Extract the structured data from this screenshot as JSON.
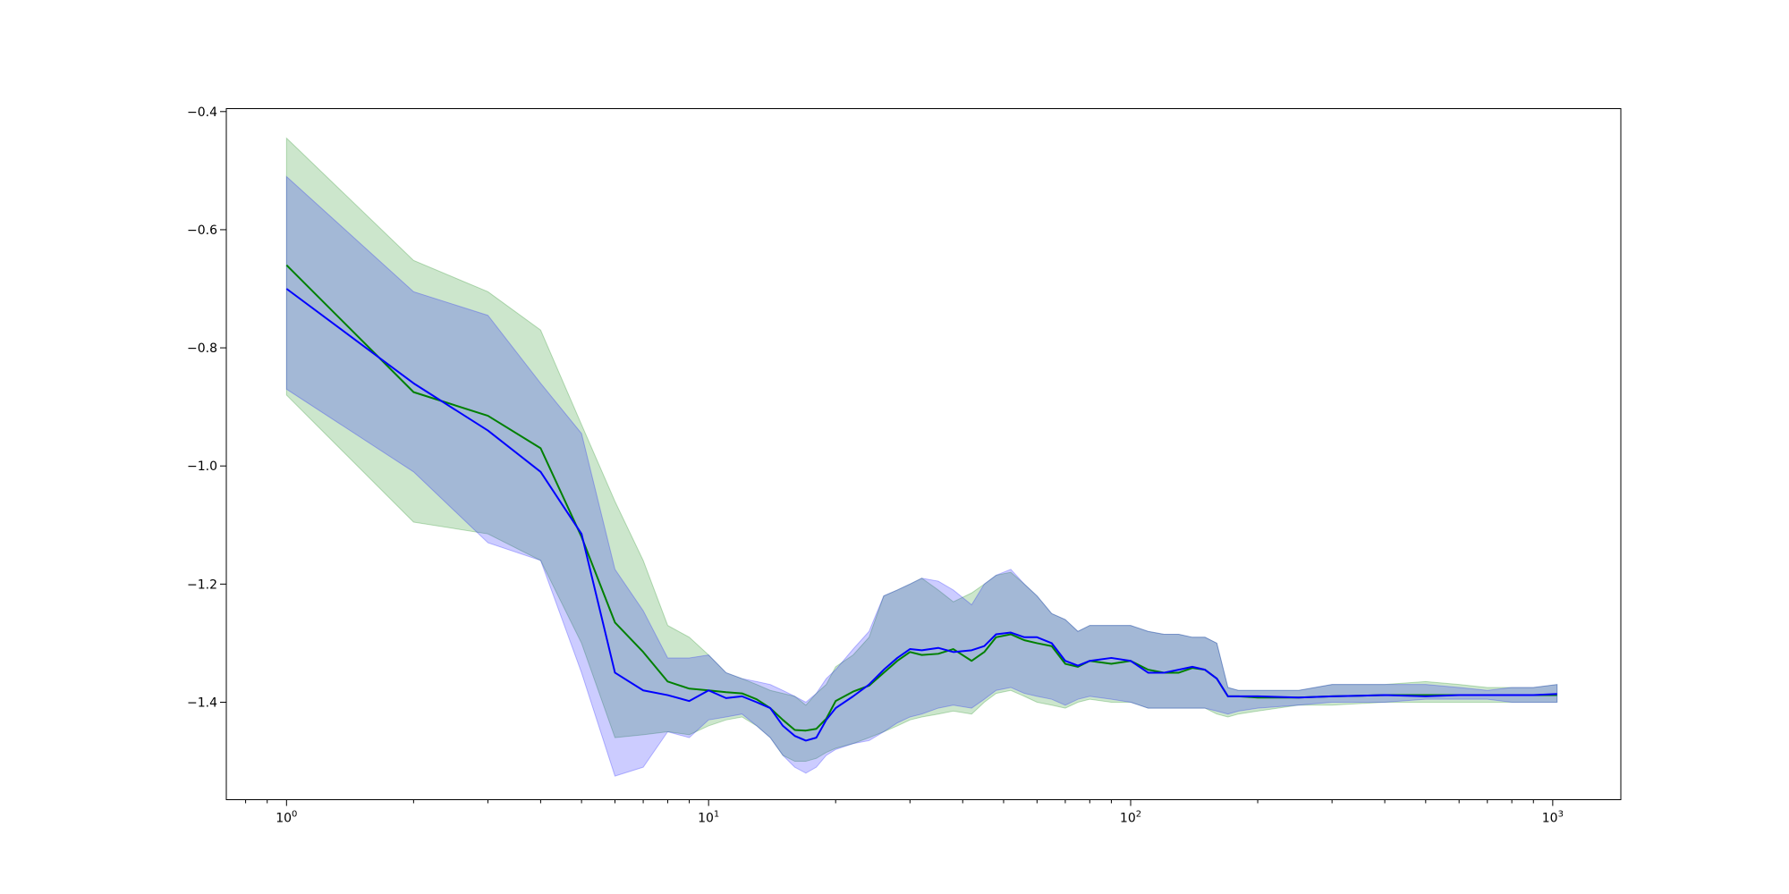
{
  "chart_data": {
    "type": "line",
    "title": "",
    "xlabel": "",
    "ylabel": "",
    "xscale": "log",
    "xlim": [
      0.72,
      1450
    ],
    "ylim": [
      -1.565,
      -0.395
    ],
    "grid": false,
    "legend": "none",
    "x_ticks": [
      {
        "value": 1,
        "base": "10",
        "exp": "0"
      },
      {
        "value": 10,
        "base": "10",
        "exp": "1"
      },
      {
        "value": 100,
        "base": "10",
        "exp": "2"
      },
      {
        "value": 1000,
        "base": "10",
        "exp": "3"
      }
    ],
    "y_ticks": [
      {
        "value": -0.4,
        "label": "−0.4"
      },
      {
        "value": -0.6,
        "label": "−0.6"
      },
      {
        "value": -0.8,
        "label": "−0.8"
      },
      {
        "value": -1.0,
        "label": "−1.0"
      },
      {
        "value": -1.2,
        "label": "−1.2"
      },
      {
        "value": -1.4,
        "label": "−1.4"
      }
    ],
    "series": [
      {
        "color": "#008000",
        "band_color": "#008000",
        "band_opacity": 0.2,
        "x": [
          1,
          2,
          3,
          4,
          5,
          6,
          7,
          8,
          9,
          10,
          11,
          12,
          13,
          14,
          15,
          16,
          17,
          18,
          19,
          20,
          22,
          24,
          26,
          28,
          30,
          32,
          35,
          38,
          42,
          45,
          48,
          52,
          56,
          60,
          65,
          70,
          75,
          80,
          90,
          100,
          110,
          120,
          130,
          140,
          150,
          160,
          170,
          180,
          200,
          250,
          300,
          400,
          500,
          600,
          700,
          800,
          900,
          1024
        ],
        "y": [
          -0.66,
          -0.875,
          -0.915,
          -0.97,
          -1.12,
          -1.265,
          -1.315,
          -1.365,
          -1.377,
          -1.38,
          -1.383,
          -1.385,
          -1.395,
          -1.41,
          -1.43,
          -1.447,
          -1.448,
          -1.445,
          -1.428,
          -1.398,
          -1.382,
          -1.372,
          -1.35,
          -1.33,
          -1.315,
          -1.32,
          -1.318,
          -1.31,
          -1.33,
          -1.315,
          -1.29,
          -1.285,
          -1.295,
          -1.3,
          -1.305,
          -1.335,
          -1.34,
          -1.33,
          -1.335,
          -1.33,
          -1.345,
          -1.35,
          -1.35,
          -1.342,
          -1.345,
          -1.36,
          -1.39,
          -1.39,
          -1.392,
          -1.392,
          -1.39,
          -1.388,
          -1.388,
          -1.388,
          -1.388,
          -1.388,
          -1.388,
          -1.388
        ],
        "lower": [
          -0.88,
          -1.095,
          -1.115,
          -1.16,
          -1.3,
          -1.46,
          -1.455,
          -1.45,
          -1.455,
          -1.44,
          -1.43,
          -1.425,
          -1.44,
          -1.46,
          -1.49,
          -1.5,
          -1.5,
          -1.495,
          -1.485,
          -1.478,
          -1.47,
          -1.46,
          -1.45,
          -1.44,
          -1.43,
          -1.425,
          -1.42,
          -1.415,
          -1.42,
          -1.4,
          -1.385,
          -1.38,
          -1.39,
          -1.4,
          -1.405,
          -1.41,
          -1.4,
          -1.395,
          -1.4,
          -1.4,
          -1.41,
          -1.41,
          -1.41,
          -1.41,
          -1.41,
          -1.42,
          -1.425,
          -1.42,
          -1.415,
          -1.405,
          -1.405,
          -1.4,
          -1.4,
          -1.4,
          -1.4,
          -1.4,
          -1.4,
          -1.4
        ],
        "upper": [
          -0.445,
          -0.652,
          -0.705,
          -0.77,
          -0.93,
          -1.06,
          -1.16,
          -1.27,
          -1.29,
          -1.32,
          -1.35,
          -1.36,
          -1.37,
          -1.38,
          -1.385,
          -1.39,
          -1.405,
          -1.385,
          -1.37,
          -1.34,
          -1.32,
          -1.29,
          -1.22,
          -1.21,
          -1.2,
          -1.19,
          -1.21,
          -1.23,
          -1.215,
          -1.2,
          -1.185,
          -1.18,
          -1.2,
          -1.22,
          -1.25,
          -1.26,
          -1.28,
          -1.27,
          -1.27,
          -1.27,
          -1.28,
          -1.285,
          -1.285,
          -1.29,
          -1.29,
          -1.3,
          -1.375,
          -1.38,
          -1.38,
          -1.38,
          -1.37,
          -1.37,
          -1.365,
          -1.37,
          -1.375,
          -1.375,
          -1.375,
          -1.37
        ]
      },
      {
        "color": "#0000ff",
        "band_color": "#0000ff",
        "band_opacity": 0.2,
        "x": [
          1,
          2,
          3,
          4,
          5,
          6,
          7,
          8,
          9,
          10,
          11,
          12,
          13,
          14,
          15,
          16,
          17,
          18,
          19,
          20,
          22,
          24,
          26,
          28,
          30,
          32,
          35,
          38,
          42,
          45,
          48,
          52,
          56,
          60,
          65,
          70,
          75,
          80,
          90,
          100,
          110,
          120,
          130,
          140,
          150,
          160,
          170,
          180,
          200,
          250,
          300,
          400,
          500,
          600,
          700,
          800,
          900,
          1024
        ],
        "y": [
          -0.7,
          -0.86,
          -0.94,
          -1.01,
          -1.115,
          -1.35,
          -1.38,
          -1.388,
          -1.398,
          -1.38,
          -1.393,
          -1.39,
          -1.4,
          -1.41,
          -1.44,
          -1.457,
          -1.465,
          -1.46,
          -1.43,
          -1.41,
          -1.39,
          -1.37,
          -1.345,
          -1.325,
          -1.31,
          -1.312,
          -1.308,
          -1.315,
          -1.312,
          -1.305,
          -1.285,
          -1.282,
          -1.29,
          -1.29,
          -1.3,
          -1.33,
          -1.338,
          -1.33,
          -1.325,
          -1.33,
          -1.35,
          -1.35,
          -1.345,
          -1.34,
          -1.345,
          -1.36,
          -1.39,
          -1.39,
          -1.39,
          -1.392,
          -1.39,
          -1.388,
          -1.39,
          -1.388,
          -1.388,
          -1.388,
          -1.388,
          -1.386
        ],
        "lower": [
          -0.87,
          -1.01,
          -1.13,
          -1.16,
          -1.35,
          -1.525,
          -1.51,
          -1.45,
          -1.46,
          -1.43,
          -1.425,
          -1.42,
          -1.44,
          -1.46,
          -1.49,
          -1.51,
          -1.52,
          -1.51,
          -1.49,
          -1.48,
          -1.47,
          -1.465,
          -1.45,
          -1.435,
          -1.425,
          -1.42,
          -1.41,
          -1.405,
          -1.41,
          -1.395,
          -1.38,
          -1.375,
          -1.385,
          -1.39,
          -1.395,
          -1.405,
          -1.395,
          -1.39,
          -1.395,
          -1.4,
          -1.41,
          -1.41,
          -1.41,
          -1.41,
          -1.41,
          -1.415,
          -1.42,
          -1.415,
          -1.41,
          -1.405,
          -1.4,
          -1.4,
          -1.395,
          -1.395,
          -1.395,
          -1.4,
          -1.4,
          -1.4
        ],
        "upper": [
          -0.51,
          -0.705,
          -0.745,
          -0.86,
          -0.945,
          -1.175,
          -1.245,
          -1.325,
          -1.325,
          -1.32,
          -1.35,
          -1.36,
          -1.365,
          -1.37,
          -1.38,
          -1.39,
          -1.4,
          -1.385,
          -1.36,
          -1.345,
          -1.31,
          -1.28,
          -1.22,
          -1.21,
          -1.2,
          -1.19,
          -1.195,
          -1.21,
          -1.235,
          -1.2,
          -1.185,
          -1.175,
          -1.2,
          -1.22,
          -1.25,
          -1.26,
          -1.28,
          -1.27,
          -1.27,
          -1.27,
          -1.28,
          -1.285,
          -1.285,
          -1.29,
          -1.29,
          -1.3,
          -1.375,
          -1.38,
          -1.38,
          -1.38,
          -1.37,
          -1.37,
          -1.37,
          -1.375,
          -1.38,
          -1.375,
          -1.375,
          -1.37
        ]
      }
    ]
  }
}
